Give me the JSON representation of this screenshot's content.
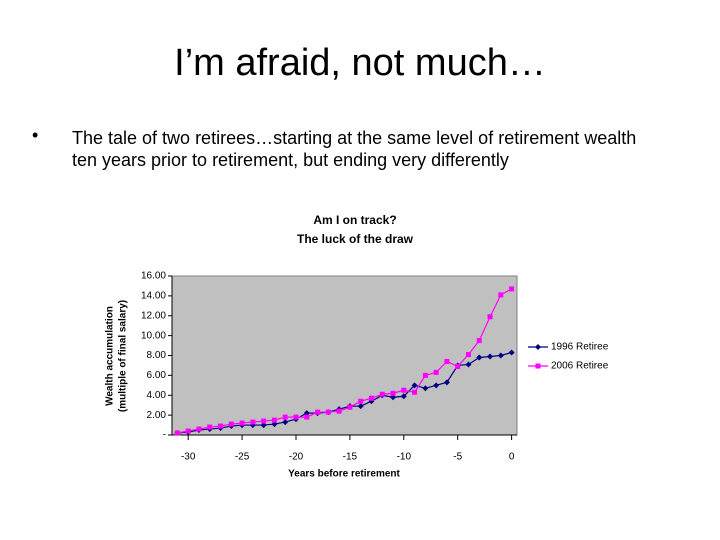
{
  "slide_title": "I’m afraid, not much…",
  "bullet": "The tale of two retirees…starting at the same level of retirement wealth ten years prior to retirement, but ending very differently",
  "chart_data": {
    "type": "line",
    "title": "Am I on track?",
    "subtitle": "The luck of the draw",
    "xlabel": "Years before retirement",
    "ylabel": [
      "Wealth accumulation",
      "(multiple of final salary)"
    ],
    "x": [
      -31,
      -30,
      -29,
      -28,
      -27,
      -26,
      -25,
      -24,
      -23,
      -22,
      -21,
      -20,
      -19,
      -18,
      -17,
      -16,
      -15,
      -14,
      -13,
      -12,
      -11,
      -10,
      -9,
      -8,
      -7,
      -6,
      -5,
      -4,
      -3,
      -2,
      -1,
      0
    ],
    "series": [
      {
        "name": "1996 Retiree",
        "color": "#000080",
        "marker": "diamond",
        "values": [
          0.2,
          0.3,
          0.5,
          0.6,
          0.7,
          0.9,
          1.0,
          1.0,
          1.0,
          1.1,
          1.3,
          1.6,
          2.2,
          2.2,
          2.3,
          2.6,
          2.9,
          2.9,
          3.4,
          4.0,
          3.8,
          3.9,
          5.0,
          4.7,
          5.0,
          5.3,
          7.0,
          7.1,
          7.8,
          7.9,
          8.0,
          8.3
        ]
      },
      {
        "name": "2006 Retiree",
        "color": "#ff00ff",
        "marker": "square",
        "values": [
          0.2,
          0.4,
          0.6,
          0.8,
          0.9,
          1.1,
          1.2,
          1.3,
          1.4,
          1.5,
          1.8,
          1.8,
          1.8,
          2.3,
          2.3,
          2.4,
          2.8,
          3.4,
          3.7,
          4.1,
          4.2,
          4.5,
          4.3,
          6.0,
          6.3,
          7.4,
          6.9,
          8.1,
          9.5,
          11.9,
          14.1,
          14.7
        ]
      }
    ],
    "xlim": [
      -31.5,
      0.5
    ],
    "xticks": [
      -30,
      -25,
      -20,
      -15,
      -10,
      -5,
      0
    ],
    "ylim": [
      0,
      16
    ],
    "yticks": [
      {
        "value": 0,
        "label": "-"
      },
      {
        "value": 2,
        "label": "2.00"
      },
      {
        "value": 4,
        "label": "4.00"
      },
      {
        "value": 6,
        "label": "6.00"
      },
      {
        "value": 8,
        "label": "8.00"
      },
      {
        "value": 10,
        "label": "10.00"
      },
      {
        "value": 12,
        "label": "12.00"
      },
      {
        "value": 14,
        "label": "14.00"
      },
      {
        "value": 16,
        "label": "16.00"
      }
    ],
    "grid": false,
    "legend": "right",
    "plot_background": "#c0c0c0"
  }
}
